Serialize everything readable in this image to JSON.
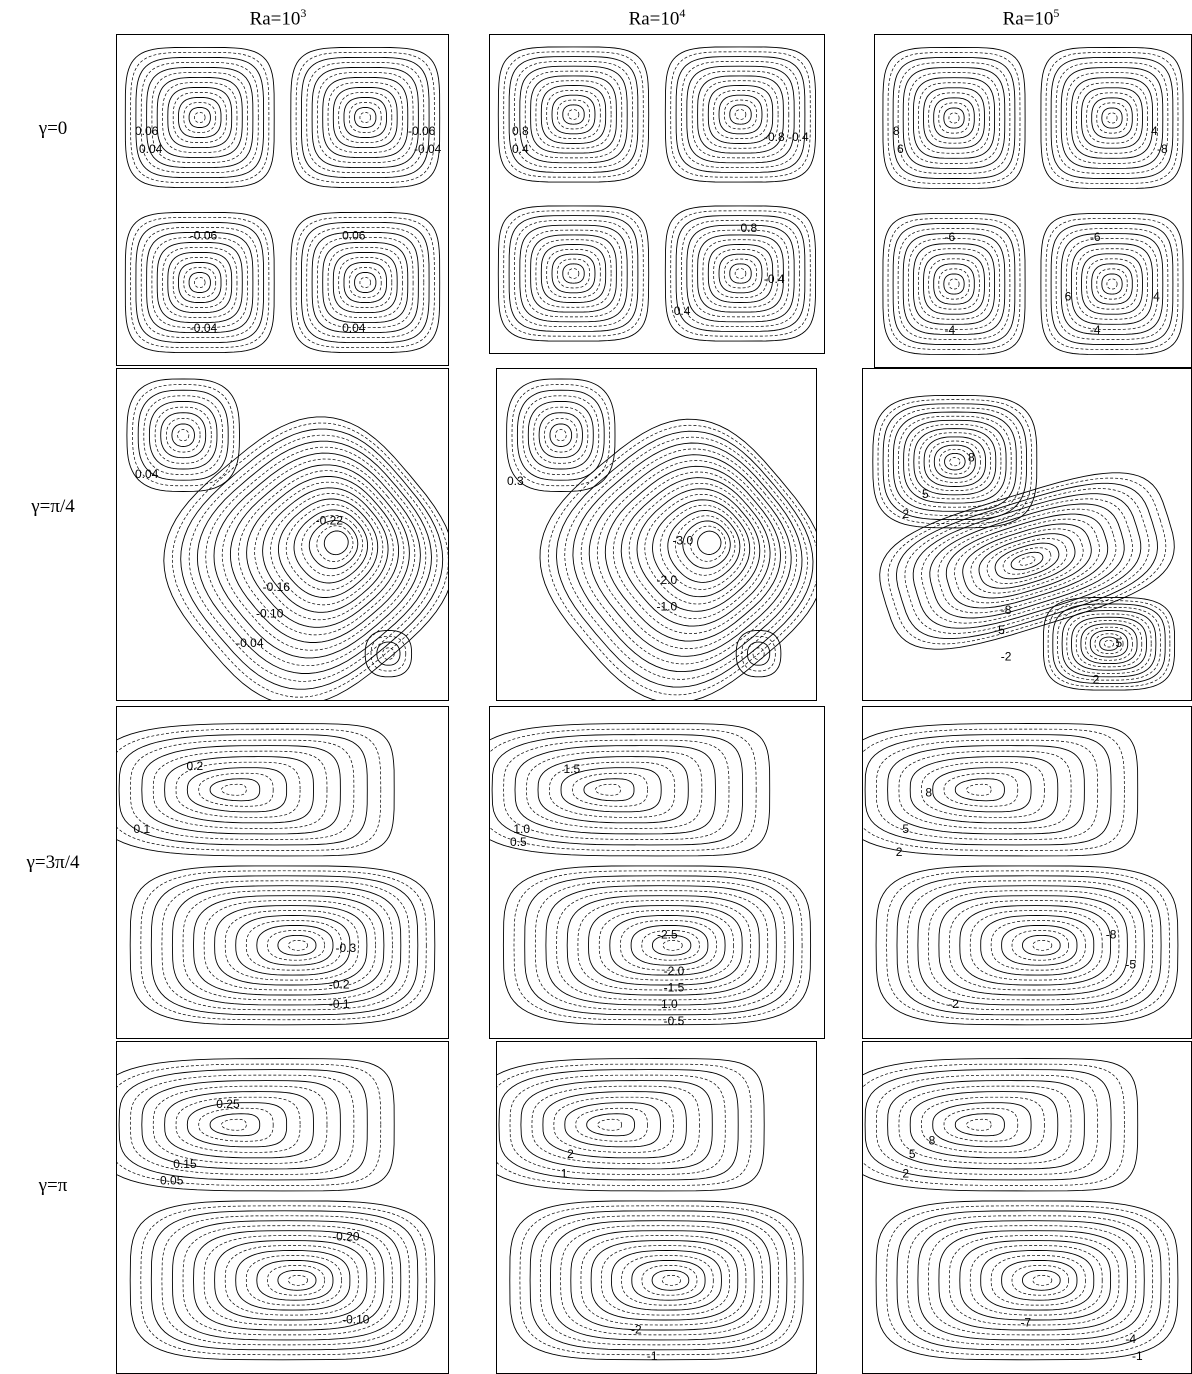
{
  "columns": [
    {
      "base": "Ra=10",
      "exp": "3"
    },
    {
      "base": "Ra=10",
      "exp": "4"
    },
    {
      "base": "Ra=10",
      "exp": "5"
    }
  ],
  "rows": [
    "γ=0",
    "γ=π/4",
    "γ=3π/4",
    "γ=π"
  ],
  "panels": [
    {
      "id": "p00",
      "type": "quad",
      "labels": [
        "0.06",
        "0.04",
        "-0.06",
        "-0.04",
        "-0.06",
        "-0.04",
        "0.06",
        "0.04"
      ]
    },
    {
      "id": "p01",
      "type": "quad",
      "labels": [
        "0.8",
        "0.4",
        "-0.8",
        "-0.4",
        "-0.4",
        "0.8",
        "0.4"
      ]
    },
    {
      "id": "p02",
      "type": "quad",
      "labels": [
        "8",
        "6",
        "4",
        "-8",
        "-6",
        "-4",
        "-6",
        "-4",
        "6",
        "4"
      ]
    },
    {
      "id": "p10",
      "type": "diag",
      "labels": [
        "0.04",
        "-0.22",
        "-0.16",
        "-0.10",
        "-0.04"
      ]
    },
    {
      "id": "p11",
      "type": "diag",
      "labels": [
        "0.3",
        "-3.0",
        "-2.0",
        "-1.0"
      ]
    },
    {
      "id": "p12",
      "type": "diag3",
      "labels": [
        "8",
        "5",
        "2",
        "-8",
        "-5",
        "-2",
        "5",
        "2"
      ]
    },
    {
      "id": "p20",
      "type": "pair",
      "labels": [
        "0.2",
        "0.1",
        "-0.3",
        "-0.2",
        "-0.1"
      ]
    },
    {
      "id": "p21",
      "type": "pair",
      "labels": [
        "1.5",
        "1.0",
        "0.5",
        "-2.5",
        "-2.0",
        "-1.5",
        "-1.0",
        "-0.5"
      ]
    },
    {
      "id": "p22",
      "type": "pair",
      "labels": [
        "8",
        "5",
        "2",
        "-8",
        "-5",
        "-2"
      ]
    },
    {
      "id": "p30",
      "type": "pair",
      "labels": [
        "0.25",
        "0.15",
        "0.05",
        "-0.20",
        "-0.10"
      ]
    },
    {
      "id": "p31",
      "type": "pair",
      "labels": [
        "2",
        "1",
        "-2",
        "-1"
      ]
    },
    {
      "id": "p32",
      "type": "pair",
      "labels": [
        "8",
        "5",
        "2",
        "-7",
        "-4",
        "-1"
      ]
    }
  ]
}
